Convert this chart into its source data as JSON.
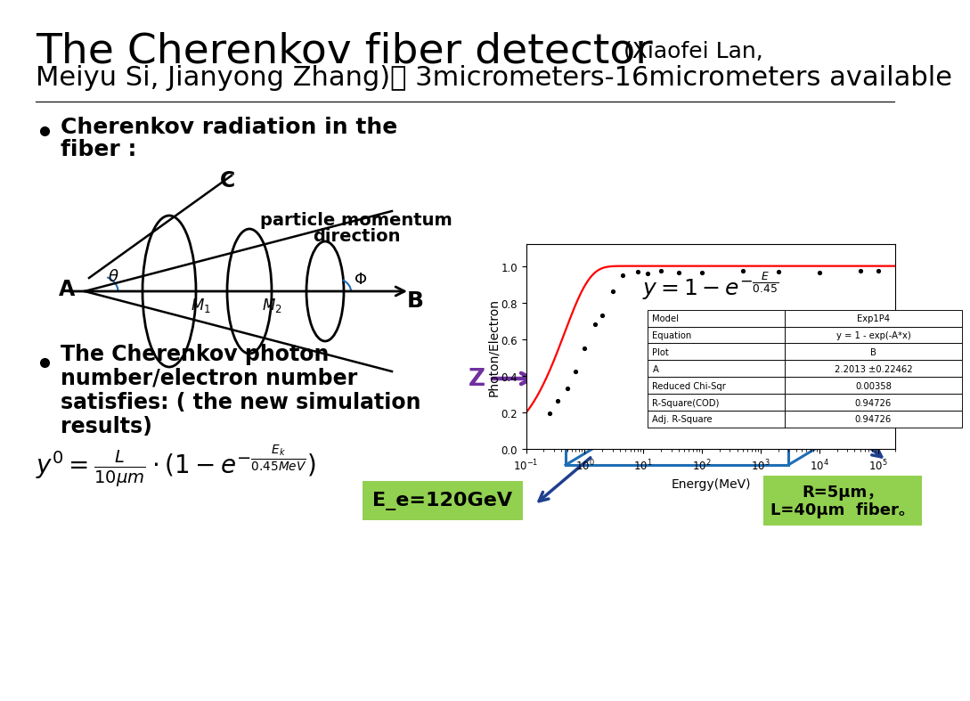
{
  "title_main": "The Cherenkov fiber detector",
  "title_authors": "(Xiaofei Lan,",
  "title_line2": "Meiyu Si, Jianyong Zhang)： 3micrometers-16micrometers available",
  "bullet1_line1": "Cherenkov radiation in the",
  "bullet1_line2": "fiber :",
  "bullet2_line1": "The Cherenkov photon",
  "bullet2_line2": "number/electron number",
  "bullet2_line3": "satisfies: ( the new simulation",
  "bullet2_line4": "results)",
  "plot_eq": "$y = 1 - e^{-\\frac{E}{0.45}}$",
  "formula": "$y' = \\frac{L}{10\\mu m} \\cdot (1 - e^{-\\frac{E_k}{0.45MeV}})$",
  "xlabel": "Energy(MeV)",
  "ylabel": "Photon/Electron",
  "table_rows": [
    [
      "Model",
      "Exp1P4"
    ],
    [
      "Equation",
      "y = 1 - exp(-A*x)"
    ],
    [
      "Plot",
      "B"
    ],
    [
      "A",
      "2.2013 ±0.22462"
    ],
    [
      "Reduced Chi-Sqr",
      "0.00358"
    ],
    [
      "R-Square(COD)",
      "0.94726"
    ],
    [
      "Adj. R-Square",
      "0.94726"
    ]
  ],
  "green_box1_text": "E_e=120GeV",
  "green_box2_text": "R=5μm，\nL=40μm  fiber。",
  "green_color": "#92d050",
  "blue_color": "#1f6eb5",
  "purple_color": "#7030a0",
  "navy_color": "#1f3f8f",
  "bg_color": "#ffffff",
  "momentum_text1": "particle momentum",
  "momentum_text2": "direction",
  "scatter_x": [
    0.25,
    0.35,
    0.5,
    0.7,
    1.0,
    1.5,
    2.0,
    3.0,
    4.5,
    8.0,
    12.0,
    20.0,
    40.0,
    100.0,
    500.0,
    2000.0,
    10000.0,
    50000.0,
    100000.0
  ],
  "scatter_y": [
    0.195,
    0.265,
    0.33,
    0.425,
    0.55,
    0.68,
    0.73,
    0.86,
    0.948,
    0.97,
    0.958,
    0.975,
    0.962,
    0.965,
    0.972,
    0.97,
    0.965,
    0.972,
    0.972
  ]
}
